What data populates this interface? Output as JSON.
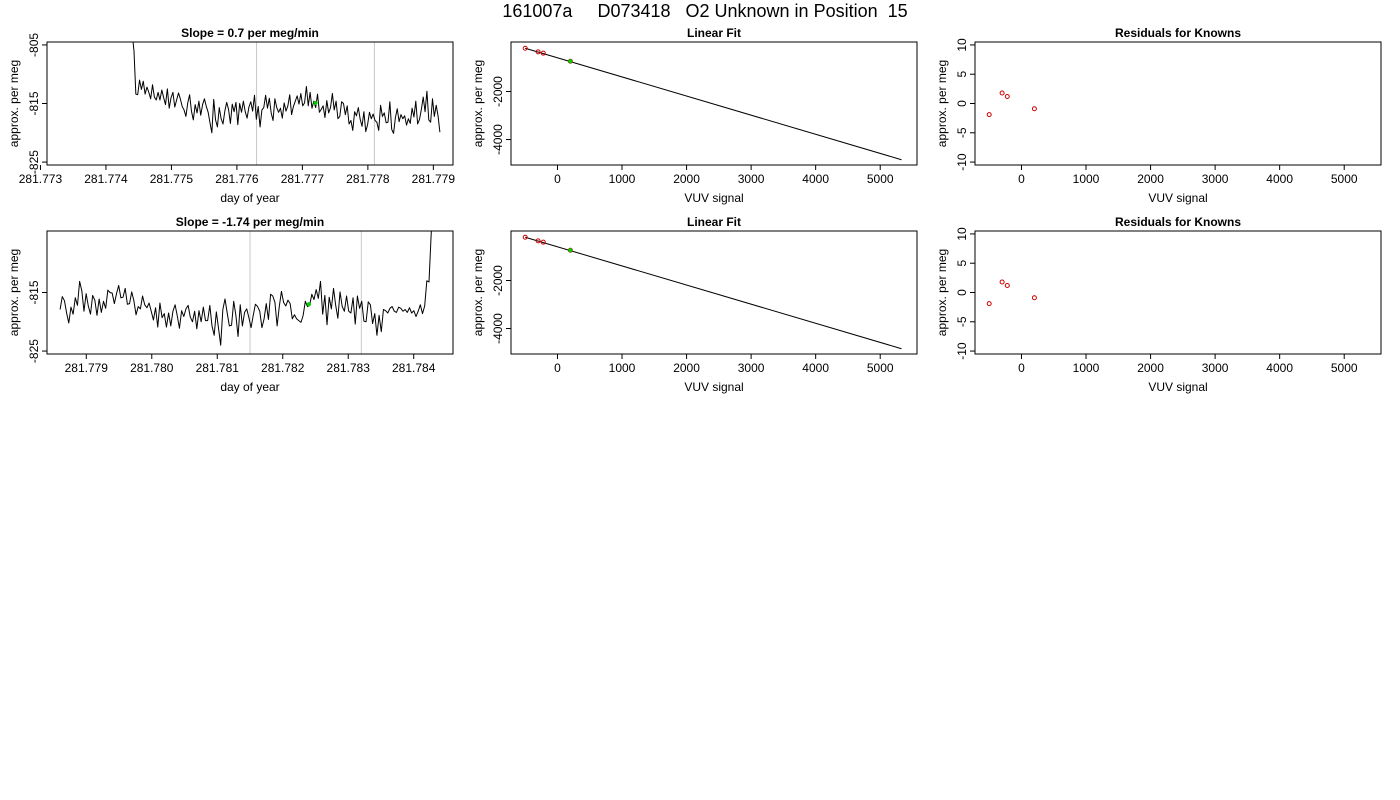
{
  "page": {
    "title": "161007a     D073418   O2 Unknown in Position  15"
  },
  "chart_data": [
    {
      "type": "line",
      "title": "Slope =  0.7  per meg/min",
      "xlabel": "day of year",
      "ylabel": "approx. per meg",
      "xlim": [
        281.7731,
        281.7793
      ],
      "ylim": [
        -825.5,
        -804.5
      ],
      "x_ticks": [
        "281.773",
        "281.774",
        "281.775",
        "281.776",
        "281.777",
        "281.778",
        "281.779"
      ],
      "x_tick_values": [
        281.773,
        281.774,
        281.775,
        281.776,
        281.777,
        281.778,
        281.779
      ],
      "y_ticks": [
        "-825",
        "-815",
        "-805"
      ],
      "y_tick_values": [
        -825,
        -815,
        -805
      ],
      "vlines": [
        281.7763,
        281.7781
      ],
      "marker": {
        "x": 281.7772,
        "y": -814.9,
        "color": "#00cc00"
      },
      "series": [
        {
          "color": "#000000",
          "x_start": 281.7744,
          "x_end": 281.7791,
          "values": [
            -803,
            -806,
            -813.4,
            -813.5,
            -811,
            -812.6,
            -811.2,
            -813.4,
            -812.2,
            -813.1,
            -814.2,
            -811.8,
            -813.9,
            -814.4,
            -813.1,
            -814.4,
            -812.7,
            -814,
            -815.2,
            -812.5,
            -815.8,
            -814,
            -813.1,
            -815.6,
            -814.4,
            -813.2,
            -814.2,
            -815.5,
            -816.1,
            -817.2,
            -814.9,
            -813.5,
            -816.3,
            -817.8,
            -815.2,
            -816.6,
            -814.6,
            -817,
            -815.2,
            -814.2,
            -815.5,
            -816.5,
            -818.3,
            -820,
            -814.3,
            -817.8,
            -819,
            -815.7,
            -817.6,
            -818.5,
            -816.3,
            -814.8,
            -816,
            -818.4,
            -815.1,
            -816.4,
            -814.8,
            -818.6,
            -815,
            -816.5,
            -814.6,
            -816.4,
            -817.5,
            -815.6,
            -814.7,
            -816.3,
            -813.6,
            -817.7,
            -815.5,
            -819,
            -816.1,
            -815.7,
            -813.6,
            -815.8,
            -814.1,
            -816.6,
            -817.9,
            -814.2,
            -815.7,
            -816.5,
            -815.8,
            -817.5,
            -814.9,
            -816.3,
            -815.4,
            -813.5,
            -816.9,
            -815.5,
            -814.6,
            -813.7,
            -815.1,
            -813.3,
            -815.4,
            -814.9,
            -812.1,
            -815.4,
            -813.1,
            -815.8,
            -814.6,
            -815.7,
            -813.4,
            -816.5,
            -816,
            -815.4,
            -817.4,
            -814.5,
            -816.6,
            -815.7,
            -813.3,
            -816.1,
            -814.6,
            -817.6,
            -817.2,
            -814.7,
            -815,
            -816.9,
            -815.4,
            -818.5,
            -817.9,
            -819.6,
            -816.4,
            -817.1,
            -815.7,
            -817.7,
            -818.9,
            -816.4,
            -819.8,
            -818.6,
            -816.5,
            -817.6,
            -816.8,
            -817.9,
            -818.2,
            -819.6,
            -815.3,
            -817.2,
            -816.6,
            -818.3,
            -818.2,
            -814.7,
            -819.4,
            -820.1,
            -817.4,
            -815.9,
            -818.1,
            -816.9,
            -817.6,
            -817.1,
            -818.7,
            -817.6,
            -818.4,
            -815.8,
            -817.3,
            -814.6,
            -818.5,
            -817.7,
            -816,
            -813.9,
            -816.4,
            -812.9,
            -817.8,
            -818.2,
            -814.2,
            -817.2,
            -815.3,
            -817.1,
            -819.9
          ]
        }
      ]
    },
    {
      "type": "scatter",
      "title": "Linear Fit",
      "xlabel": "VUV signal",
      "ylabel": "approx. per meg",
      "xlim": [
        -720,
        5570
      ],
      "ylim": [
        -5060,
        60
      ],
      "x_ticks": [
        "0",
        "1000",
        "2000",
        "3000",
        "4000",
        "5000"
      ],
      "x_tick_values": [
        0,
        1000,
        2000,
        3000,
        4000,
        5000
      ],
      "y_ticks": [
        "-4000",
        "-2000"
      ],
      "y_tick_values": [
        -4000,
        -2000
      ],
      "fit_line": {
        "x": [
          -500,
          5330
        ],
        "y": [
          -200,
          -4840
        ]
      },
      "points": [
        {
          "x": -500,
          "y": -200,
          "color": "#cc0000"
        },
        {
          "x": -300,
          "y": -350,
          "color": "#cc0000"
        },
        {
          "x": -220,
          "y": -405,
          "color": "#cc0000"
        },
        {
          "x": 200,
          "y": -740,
          "color": "#cc0000"
        }
      ],
      "marker": {
        "x": 200,
        "y": -740,
        "color": "#00cc00"
      }
    },
    {
      "type": "scatter",
      "title": "Residuals for Knowns",
      "xlabel": "VUV signal",
      "ylabel": "approx. per meg",
      "xlim": [
        -720,
        5570
      ],
      "ylim": [
        -10.5,
        10.5
      ],
      "x_ticks": [
        "0",
        "1000",
        "2000",
        "3000",
        "4000",
        "5000"
      ],
      "x_tick_values": [
        0,
        1000,
        2000,
        3000,
        4000,
        5000
      ],
      "y_ticks": [
        "-10",
        "-5",
        "0",
        "5",
        "10"
      ],
      "y_tick_values": [
        -10,
        -5,
        0,
        5,
        10
      ],
      "points": [
        {
          "x": -500,
          "y": -1.9,
          "color": "#cc0000"
        },
        {
          "x": -300,
          "y": 1.8,
          "color": "#cc0000"
        },
        {
          "x": -220,
          "y": 1.2,
          "color": "#cc0000"
        },
        {
          "x": 200,
          "y": -0.9,
          "color": "#cc0000"
        }
      ]
    },
    {
      "type": "line",
      "title": "Slope =  -1.74  per meg/min",
      "xlabel": "day of year",
      "ylabel": "approx. per meg",
      "xlim": [
        281.7784,
        281.7846
      ],
      "ylim": [
        -825.5,
        -804.5
      ],
      "x_ticks": [
        "281.779",
        "281.780",
        "281.781",
        "281.782",
        "281.783",
        "281.784"
      ],
      "x_tick_values": [
        281.779,
        281.78,
        281.781,
        281.782,
        281.783,
        281.784
      ],
      "y_ticks": [
        "-825",
        "-815"
      ],
      "y_tick_values": [
        -825,
        -815
      ],
      "vlines": [
        281.7815,
        281.7832
      ],
      "marker": {
        "x": 281.7824,
        "y": -817.0,
        "color": "#00cc00"
      },
      "series": [
        {
          "color": "#000000",
          "x_start": 281.7786,
          "x_end": 281.7843,
          "values": [
            -817.9,
            -815.7,
            -816.4,
            -818.5,
            -820.2,
            -817.5,
            -818.7,
            -815.9,
            -817.2,
            -813.1,
            -814.7,
            -818.2,
            -815.2,
            -817.3,
            -818.7,
            -815.5,
            -816.3,
            -818.9,
            -816.1,
            -818.4,
            -816.5,
            -817.7,
            -814.6,
            -815,
            -815.1,
            -816.9,
            -815.2,
            -813.8,
            -815.9,
            -815.8,
            -814.3,
            -817,
            -816.9,
            -814.9,
            -816.4,
            -818.8,
            -817.4,
            -817.8,
            -815.6,
            -817.1,
            -817.6,
            -816.8,
            -818.2,
            -819.7,
            -817.6,
            -820.9,
            -816.8,
            -819.3,
            -818.6,
            -820.9,
            -818.5,
            -820.7,
            -818.2,
            -817.1,
            -819,
            -821.1,
            -818.1,
            -819.1,
            -817.8,
            -817.2,
            -819.2,
            -820,
            -818.2,
            -821.2,
            -818.1,
            -820,
            -817.5,
            -819.8,
            -819.8,
            -817.2,
            -820.7,
            -822.3,
            -818.3,
            -821.1,
            -824,
            -817.9,
            -816.1,
            -818.5,
            -820.7,
            -820.6,
            -816.5,
            -818.9,
            -822.5,
            -817.1,
            -820.7,
            -818.4,
            -817.8,
            -819.3,
            -821,
            -818.9,
            -817,
            -817.4,
            -818.2,
            -821,
            -819.5,
            -816.9,
            -819.6,
            -815.3,
            -815.6,
            -816.7,
            -820.7,
            -817.4,
            -814.8,
            -816.7,
            -817.3,
            -816.3,
            -816.9,
            -819.5,
            -818.8,
            -819.5,
            -819.8,
            -820.1,
            -818.9,
            -816.5,
            -817.4,
            -817.2,
            -815.3,
            -816.2,
            -814.5,
            -816,
            -813.1,
            -818.7,
            -815.5,
            -820.5,
            -815.8,
            -817.8,
            -814.3,
            -817.2,
            -819.4,
            -814.9,
            -817.4,
            -818.2,
            -815.6,
            -818.2,
            -818.5,
            -815.9,
            -820.4,
            -815.6,
            -817.7,
            -816.5,
            -819.9,
            -820,
            -816.6,
            -817.1,
            -820.3,
            -818.6,
            -822.3,
            -818.9,
            -821.7,
            -817.9,
            -818.1,
            -818.5,
            -817.7,
            -817.4,
            -818.2,
            -818.4,
            -817.5,
            -817.7,
            -818.2,
            -817.9,
            -818.4,
            -817.6,
            -818.5,
            -818.1,
            -819.1,
            -818.2,
            -817.1,
            -818.6,
            -817.3,
            -813,
            -813.2,
            -805,
            -800
          ]
        }
      ]
    },
    {
      "type": "scatter",
      "title": "Linear Fit",
      "xlabel": "VUV signal",
      "ylabel": "approx. per meg",
      "xlim": [
        -720,
        5570
      ],
      "ylim": [
        -5060,
        60
      ],
      "x_ticks": [
        "0",
        "1000",
        "2000",
        "3000",
        "4000",
        "5000"
      ],
      "x_tick_values": [
        0,
        1000,
        2000,
        3000,
        4000,
        5000
      ],
      "y_ticks": [
        "-4000",
        "-2000"
      ],
      "y_tick_values": [
        -4000,
        -2000
      ],
      "fit_line": {
        "x": [
          -500,
          5330
        ],
        "y": [
          -200,
          -4840
        ]
      },
      "points": [
        {
          "x": -500,
          "y": -200,
          "color": "#cc0000"
        },
        {
          "x": -300,
          "y": -350,
          "color": "#cc0000"
        },
        {
          "x": -220,
          "y": -405,
          "color": "#cc0000"
        },
        {
          "x": 200,
          "y": -740,
          "color": "#cc0000"
        }
      ],
      "marker": {
        "x": 200,
        "y": -740,
        "color": "#00cc00"
      }
    },
    {
      "type": "scatter",
      "title": "Residuals for Knowns",
      "xlabel": "VUV signal",
      "ylabel": "approx. per meg",
      "xlim": [
        -720,
        5570
      ],
      "ylim": [
        -10.5,
        10.5
      ],
      "x_ticks": [
        "0",
        "1000",
        "2000",
        "3000",
        "4000",
        "5000"
      ],
      "x_tick_values": [
        0,
        1000,
        2000,
        3000,
        4000,
        5000
      ],
      "y_ticks": [
        "-10",
        "-5",
        "0",
        "5",
        "10"
      ],
      "y_tick_values": [
        -10,
        -5,
        0,
        5,
        10
      ],
      "points": [
        {
          "x": -500,
          "y": -1.9,
          "color": "#cc0000"
        },
        {
          "x": -300,
          "y": 1.8,
          "color": "#cc0000"
        },
        {
          "x": -220,
          "y": 1.2,
          "color": "#cc0000"
        },
        {
          "x": 200,
          "y": -0.9,
          "color": "#cc0000"
        }
      ]
    }
  ]
}
